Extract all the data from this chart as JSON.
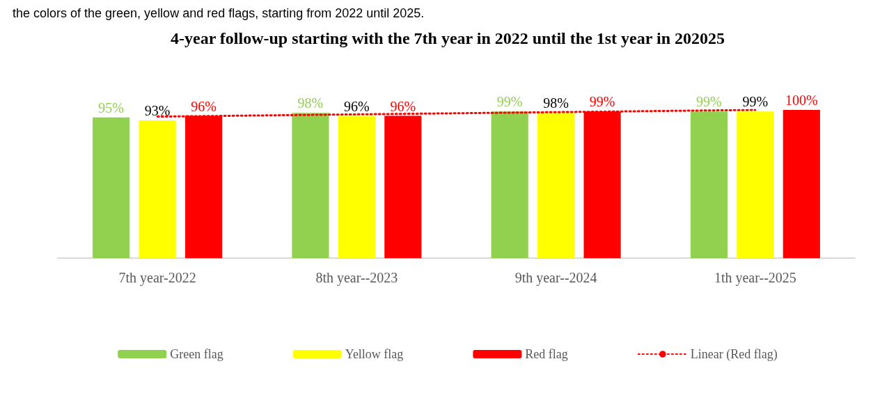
{
  "chart_data": {
    "type": "bar",
    "title": "4-year follow-up starting with the 7th year in 2022 until the 1st year in 202025",
    "annotations": [
      "the colors of the green, yellow and red flags, starting from 2022 until 2025."
    ],
    "categories": [
      "7th year-2022",
      "8th year--2023",
      "9th year--2024",
      "1th year--2025"
    ],
    "tick_labels": "x",
    "grid": false,
    "legend": "bottom",
    "series": [
      {
        "name": "Green flag",
        "color": "#92d050",
        "values": [
          95,
          98,
          99,
          99
        ],
        "value_labels": [
          "95%",
          "98%",
          "99%",
          "99%"
        ]
      },
      {
        "name": "Yellow flag",
        "color": "#ffff00",
        "values": [
          93,
          96,
          98,
          99
        ],
        "value_labels": [
          "93%",
          "96%",
          "98%",
          "99%"
        ]
      },
      {
        "name": "Red flag",
        "color": "#ff0000",
        "values": [
          96,
          96,
          99,
          100
        ],
        "value_labels": [
          "96%",
          "96%",
          "99%",
          "100%"
        ]
      },
      {
        "name": "Linear (Red flag)",
        "type": "line",
        "color": "#ff0000",
        "line_style": "dotted",
        "marker": "none",
        "x": [
          "7th year-2022",
          "8th year--2023",
          "9th year--2024",
          "1th year--2025"
        ],
        "values": [
          95.5,
          97,
          98.5,
          100
        ]
      }
    ]
  }
}
